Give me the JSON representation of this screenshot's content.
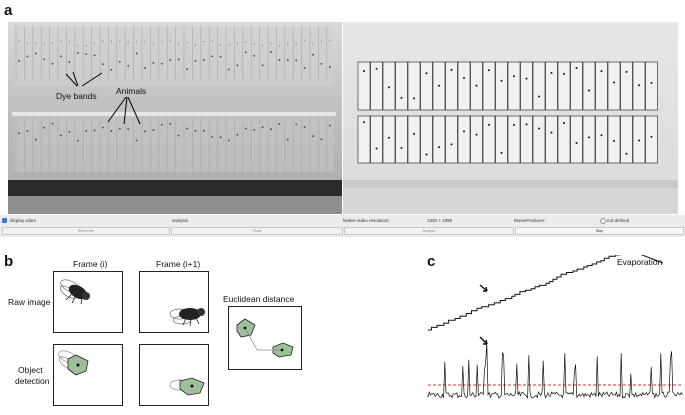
{
  "panels": {
    "a": "a",
    "b": "b",
    "c": "c"
  },
  "panel_a": {
    "annotations": {
      "dye_bands": "Dye bands",
      "animals": "Animals"
    },
    "controls": {
      "display_video_label": "display video",
      "analysis_label": "analysis",
      "native_resolution_label": "Native video resolution:",
      "resolution_value": "1920 × 1080",
      "movie_producer_label": "MovieProducer:",
      "status_text": "not defined",
      "display_video_checked": true
    },
    "buttons": {
      "reference": "Reference",
      "show": "Show",
      "analyze": "Analyze",
      "stop": "Stop"
    }
  },
  "panel_b": {
    "col_frame_i": "Frame (i)",
    "col_frame_i1": "Frame (i+1)",
    "row_raw": "Raw image",
    "row_object_1": "Object",
    "row_object_2": "detection",
    "euclidean": "Euclidean distance"
  },
  "panel_c": {
    "evaporation": "Evaporation"
  },
  "colors": {
    "detection_fill": "#9dbf9a",
    "threshold": "#d9342b"
  }
}
